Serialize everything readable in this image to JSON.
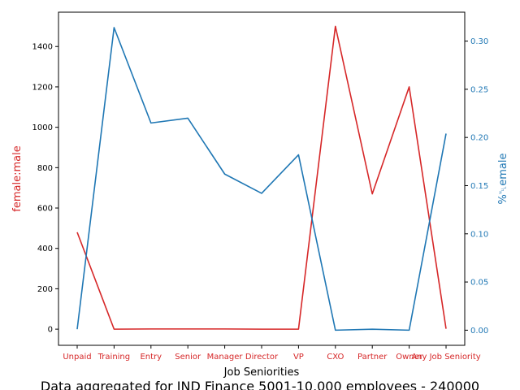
{
  "chart_data": {
    "type": "line",
    "caption": "Data aggregated for IND Finance 5001-10,000 employees - 240000",
    "xlabel": "Job Seniorities",
    "categories": [
      "Unpaid",
      "Training",
      "Entry",
      "Senior",
      "Manager",
      "Director",
      "VP",
      "CXO",
      "Partner",
      "Owner",
      "Any Job Seniority"
    ],
    "y_left": {
      "label": "female:male",
      "color": "#d62728",
      "ylim": [
        -80,
        1570
      ],
      "ticks": [
        0,
        200,
        400,
        600,
        800,
        1000,
        1200,
        1400
      ]
    },
    "y_right": {
      "label": "%␀emale",
      "color": "#1f77b4",
      "ylim": [
        -0.0157,
        0.33
      ],
      "ticks": [
        "0.00",
        "0.05",
        "0.10",
        "0.15",
        "0.20",
        "0.25",
        "0.30"
      ]
    },
    "series": [
      {
        "axis": "left",
        "color": "#d62728",
        "values": [
          480,
          0,
          1,
          1,
          1,
          0,
          0,
          1500,
          670,
          1200,
          2
        ]
      },
      {
        "axis": "right",
        "color": "#1f77b4",
        "values": [
          0.001,
          0.314,
          0.215,
          0.22,
          0.162,
          0.142,
          0.182,
          0.0,
          0.001,
          0.0,
          0.204
        ]
      }
    ],
    "grid": false
  }
}
